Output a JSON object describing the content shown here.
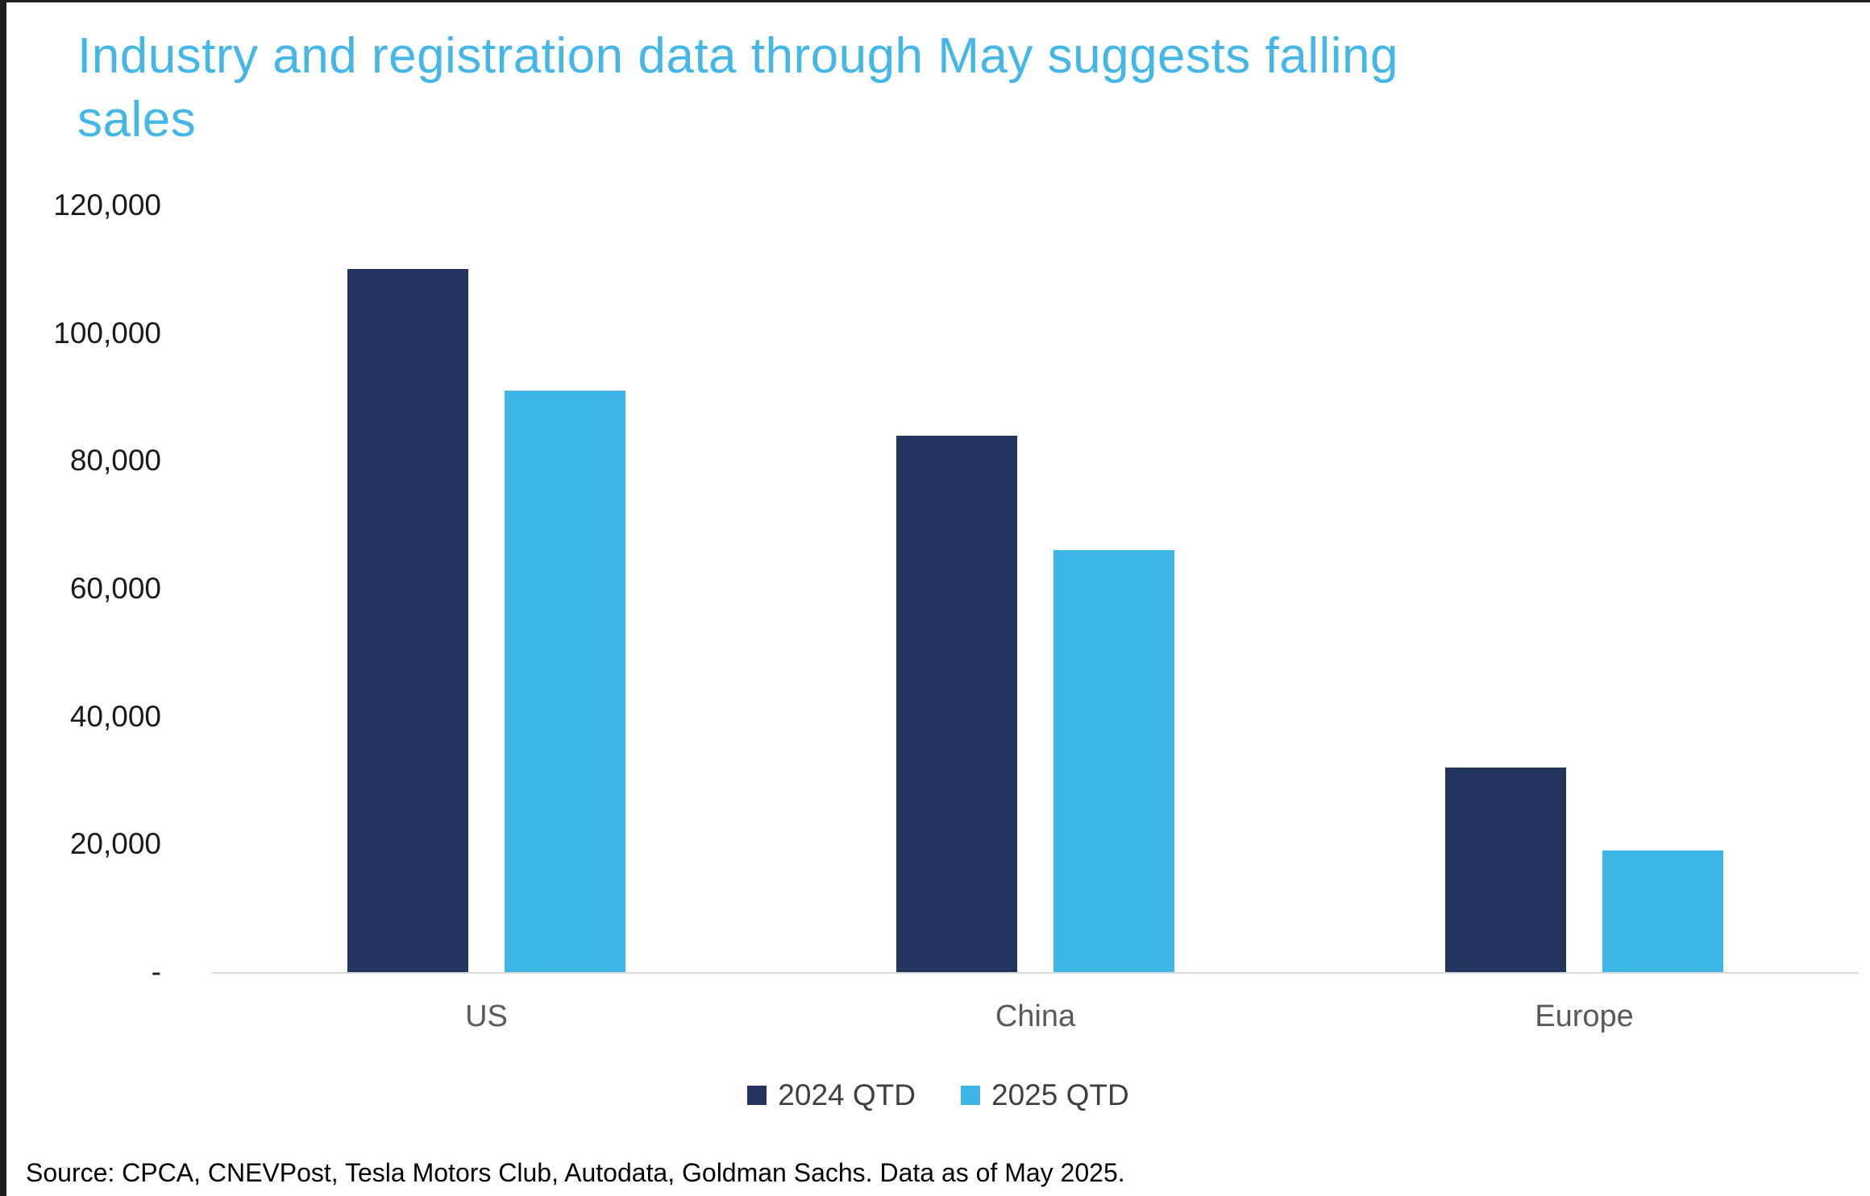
{
  "title": "Industry and registration data through May suggests falling sales",
  "source": "Source: CPCA, CNEVPost, Tesla Motors Club, Autodata, Goldman Sachs. Data as of May 2025.",
  "colors": {
    "title": "#45b6e8",
    "series_2024": "#23355e",
    "series_2025": "#3db5e6",
    "axis_line": "#d9d9d9",
    "frame": "#1f1f1f"
  },
  "chart_data": {
    "type": "bar",
    "title": "Industry and registration data through May suggests falling sales",
    "categories": [
      "US",
      "China",
      "Europe"
    ],
    "series": [
      {
        "name": "2024 QTD",
        "color": "#23355e",
        "values": [
          110000,
          84000,
          32000
        ]
      },
      {
        "name": "2025 QTD",
        "color": "#3db5e6",
        "values": [
          91000,
          66000,
          19000
        ]
      }
    ],
    "ylim": [
      0,
      120000
    ],
    "yticks": [
      "-",
      "20,000",
      "40,000",
      "60,000",
      "80,000",
      "100,000",
      "120,000"
    ],
    "grid": false,
    "legend_position": "bottom",
    "xlabel": "",
    "ylabel": ""
  }
}
